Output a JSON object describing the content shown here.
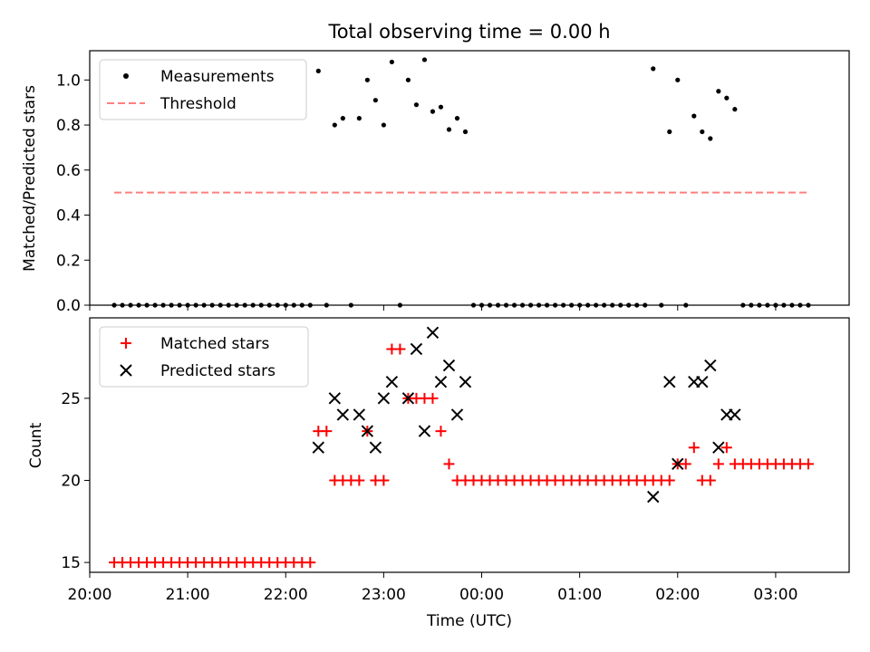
{
  "chart_data": [
    {
      "type": "scatter",
      "title": "Total observing time = 0.00 h",
      "xlabel": "",
      "ylabel": "Matched/Predicted stars",
      "xlim": [
        "20:00",
        "03:45"
      ],
      "ylim": [
        0,
        1.13
      ],
      "yticks": [
        "0.0",
        "0.2",
        "0.4",
        "0.6",
        "0.8",
        "1.0"
      ],
      "legend_position": "upper-left",
      "series": [
        {
          "name": "Measurements",
          "marker": "dot",
          "color": "#000000",
          "points": [
            [
              "20:15",
              0
            ],
            [
              "20:20",
              0
            ],
            [
              "20:25",
              0
            ],
            [
              "20:30",
              0
            ],
            [
              "20:35",
              0
            ],
            [
              "20:40",
              0
            ],
            [
              "20:45",
              0
            ],
            [
              "20:50",
              0
            ],
            [
              "20:55",
              0
            ],
            [
              "21:00",
              0
            ],
            [
              "21:05",
              0
            ],
            [
              "21:10",
              0
            ],
            [
              "21:15",
              0
            ],
            [
              "21:20",
              0
            ],
            [
              "21:25",
              0
            ],
            [
              "21:30",
              0
            ],
            [
              "21:35",
              0
            ],
            [
              "21:40",
              0
            ],
            [
              "21:45",
              0
            ],
            [
              "21:50",
              0
            ],
            [
              "21:55",
              0
            ],
            [
              "22:00",
              0
            ],
            [
              "22:05",
              0
            ],
            [
              "22:10",
              0
            ],
            [
              "22:15",
              0
            ],
            [
              "22:20",
              1.04
            ],
            [
              "22:25",
              0
            ],
            [
              "22:30",
              0.8
            ],
            [
              "22:35",
              0.83
            ],
            [
              "22:40",
              0
            ],
            [
              "22:45",
              0.83
            ],
            [
              "22:50",
              1.0
            ],
            [
              "22:55",
              0.91
            ],
            [
              "23:00",
              0.8
            ],
            [
              "23:05",
              1.08
            ],
            [
              "23:10",
              0
            ],
            [
              "23:15",
              1.0
            ],
            [
              "23:20",
              0.89
            ],
            [
              "23:25",
              1.09
            ],
            [
              "23:30",
              0.86
            ],
            [
              "23:35",
              0.88
            ],
            [
              "23:40",
              0.78
            ],
            [
              "23:45",
              0.83
            ],
            [
              "23:50",
              0.77
            ],
            [
              "23:55",
              0
            ],
            [
              "00:00",
              0
            ],
            [
              "00:05",
              0
            ],
            [
              "00:10",
              0
            ],
            [
              "00:15",
              0
            ],
            [
              "00:20",
              0
            ],
            [
              "00:25",
              0
            ],
            [
              "00:30",
              0
            ],
            [
              "00:35",
              0
            ],
            [
              "00:40",
              0
            ],
            [
              "00:45",
              0
            ],
            [
              "00:50",
              0
            ],
            [
              "00:55",
              0
            ],
            [
              "01:00",
              0
            ],
            [
              "01:05",
              0
            ],
            [
              "01:10",
              0
            ],
            [
              "01:15",
              0
            ],
            [
              "01:20",
              0
            ],
            [
              "01:25",
              0
            ],
            [
              "01:30",
              0
            ],
            [
              "01:35",
              0
            ],
            [
              "01:40",
              0
            ],
            [
              "01:45",
              1.05
            ],
            [
              "01:50",
              0
            ],
            [
              "01:55",
              0.77
            ],
            [
              "02:00",
              1.0
            ],
            [
              "02:05",
              0
            ],
            [
              "02:10",
              0.84
            ],
            [
              "02:15",
              0.77
            ],
            [
              "02:20",
              0.74
            ],
            [
              "02:25",
              0.95
            ],
            [
              "02:30",
              0.92
            ],
            [
              "02:35",
              0.87
            ],
            [
              "02:40",
              0
            ],
            [
              "02:45",
              0
            ],
            [
              "02:50",
              0
            ],
            [
              "02:55",
              0
            ],
            [
              "03:00",
              0
            ],
            [
              "03:05",
              0
            ],
            [
              "03:10",
              0
            ],
            [
              "03:15",
              0
            ],
            [
              "03:20",
              0
            ]
          ]
        },
        {
          "name": "Threshold",
          "marker": "dashed-line",
          "color": "#ff7f7f",
          "points": [
            [
              "20:15",
              0.5
            ],
            [
              "03:20",
              0.5
            ]
          ]
        }
      ]
    },
    {
      "type": "scatter",
      "title": "",
      "xlabel": "Time (UTC)",
      "ylabel": "Count",
      "xlim": [
        "20:00",
        "03:45"
      ],
      "ylim": [
        14.4,
        29.9
      ],
      "xticks": [
        "20:00",
        "21:00",
        "22:00",
        "23:00",
        "00:00",
        "01:00",
        "02:00",
        "03:00"
      ],
      "yticks": [
        "15",
        "20",
        "25"
      ],
      "legend_position": "upper-left",
      "series": [
        {
          "name": "Matched stars",
          "marker": "plus",
          "color": "#ff0000",
          "points": [
            [
              "20:15",
              15
            ],
            [
              "20:20",
              15
            ],
            [
              "20:25",
              15
            ],
            [
              "20:30",
              15
            ],
            [
              "20:35",
              15
            ],
            [
              "20:40",
              15
            ],
            [
              "20:45",
              15
            ],
            [
              "20:50",
              15
            ],
            [
              "20:55",
              15
            ],
            [
              "21:00",
              15
            ],
            [
              "21:05",
              15
            ],
            [
              "21:10",
              15
            ],
            [
              "21:15",
              15
            ],
            [
              "21:20",
              15
            ],
            [
              "21:25",
              15
            ],
            [
              "21:30",
              15
            ],
            [
              "21:35",
              15
            ],
            [
              "21:40",
              15
            ],
            [
              "21:45",
              15
            ],
            [
              "21:50",
              15
            ],
            [
              "21:55",
              15
            ],
            [
              "22:00",
              15
            ],
            [
              "22:05",
              15
            ],
            [
              "22:10",
              15
            ],
            [
              "22:15",
              15
            ],
            [
              "22:20",
              23
            ],
            [
              "22:25",
              23
            ],
            [
              "22:30",
              20
            ],
            [
              "22:35",
              20
            ],
            [
              "22:40",
              20
            ],
            [
              "22:45",
              20
            ],
            [
              "22:50",
              23
            ],
            [
              "22:55",
              20
            ],
            [
              "23:00",
              20
            ],
            [
              "23:05",
              28
            ],
            [
              "23:10",
              28
            ],
            [
              "23:15",
              25
            ],
            [
              "23:20",
              25
            ],
            [
              "23:25",
              25
            ],
            [
              "23:30",
              25
            ],
            [
              "23:35",
              23
            ],
            [
              "23:40",
              21
            ],
            [
              "23:45",
              20
            ],
            [
              "23:50",
              20
            ],
            [
              "23:55",
              20
            ],
            [
              "00:00",
              20
            ],
            [
              "00:05",
              20
            ],
            [
              "00:10",
              20
            ],
            [
              "00:15",
              20
            ],
            [
              "00:20",
              20
            ],
            [
              "00:25",
              20
            ],
            [
              "00:30",
              20
            ],
            [
              "00:35",
              20
            ],
            [
              "00:40",
              20
            ],
            [
              "00:45",
              20
            ],
            [
              "00:50",
              20
            ],
            [
              "00:55",
              20
            ],
            [
              "01:00",
              20
            ],
            [
              "01:05",
              20
            ],
            [
              "01:10",
              20
            ],
            [
              "01:15",
              20
            ],
            [
              "01:20",
              20
            ],
            [
              "01:25",
              20
            ],
            [
              "01:30",
              20
            ],
            [
              "01:35",
              20
            ],
            [
              "01:40",
              20
            ],
            [
              "01:45",
              20
            ],
            [
              "01:50",
              20
            ],
            [
              "01:55",
              20
            ],
            [
              "02:00",
              21
            ],
            [
              "02:05",
              21
            ],
            [
              "02:10",
              22
            ],
            [
              "02:15",
              20
            ],
            [
              "02:20",
              20
            ],
            [
              "02:25",
              21
            ],
            [
              "02:30",
              22
            ],
            [
              "02:35",
              21
            ],
            [
              "02:40",
              21
            ],
            [
              "02:45",
              21
            ],
            [
              "02:50",
              21
            ],
            [
              "02:55",
              21
            ],
            [
              "03:00",
              21
            ],
            [
              "03:05",
              21
            ],
            [
              "03:10",
              21
            ],
            [
              "03:15",
              21
            ],
            [
              "03:20",
              21
            ]
          ]
        },
        {
          "name": "Predicted stars",
          "marker": "x",
          "color": "#000000",
          "points": [
            [
              "22:20",
              22
            ],
            [
              "22:30",
              25
            ],
            [
              "22:35",
              24
            ],
            [
              "22:45",
              24
            ],
            [
              "22:50",
              23
            ],
            [
              "22:55",
              22
            ],
            [
              "23:00",
              25
            ],
            [
              "23:05",
              26
            ],
            [
              "23:15",
              25
            ],
            [
              "23:20",
              28
            ],
            [
              "23:25",
              23
            ],
            [
              "23:30",
              29
            ],
            [
              "23:35",
              26
            ],
            [
              "23:40",
              27
            ],
            [
              "23:45",
              24
            ],
            [
              "23:50",
              26
            ],
            [
              "01:45",
              19
            ],
            [
              "01:55",
              26
            ],
            [
              "02:00",
              21
            ],
            [
              "02:10",
              26
            ],
            [
              "02:15",
              26
            ],
            [
              "02:20",
              27
            ],
            [
              "02:25",
              22
            ],
            [
              "02:30",
              24
            ],
            [
              "02:35",
              24
            ]
          ]
        }
      ]
    }
  ]
}
